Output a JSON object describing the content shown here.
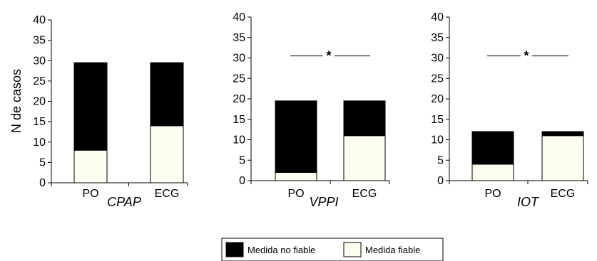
{
  "y_axis_label": "N de casos",
  "legend": {
    "items": [
      {
        "label": "Medida no fiable",
        "color": "#000000"
      },
      {
        "label": "Medida fiable",
        "color": "#fefef0"
      }
    ]
  },
  "chart_data": [
    {
      "type": "bar",
      "stacked": true,
      "title": "CPAP",
      "categories": [
        "PO",
        "ECG"
      ],
      "ylim": [
        0,
        40
      ],
      "yticks": [
        0,
        5,
        10,
        15,
        20,
        25,
        30,
        35,
        40
      ],
      "series": [
        {
          "name": "Medida fiable",
          "values": [
            8,
            14
          ]
        },
        {
          "name": "Medida no fiable",
          "values": [
            21.5,
            15.5
          ]
        }
      ],
      "significance": null
    },
    {
      "type": "bar",
      "stacked": true,
      "title": "VPPI",
      "categories": [
        "PO",
        "ECG"
      ],
      "ylim": [
        0,
        40
      ],
      "yticks": [
        0,
        5,
        10,
        15,
        20,
        25,
        30,
        35,
        40
      ],
      "series": [
        {
          "name": "Medida fiable",
          "values": [
            2,
            11
          ]
        },
        {
          "name": "Medida no fiable",
          "values": [
            17.5,
            8.5
          ]
        }
      ],
      "significance": {
        "label": "*",
        "y": 30.5
      }
    },
    {
      "type": "bar",
      "stacked": true,
      "title": "IOT",
      "categories": [
        "PO",
        "ECG"
      ],
      "ylim": [
        0,
        40
      ],
      "yticks": [
        0,
        5,
        10,
        15,
        20,
        25,
        30,
        35,
        40
      ],
      "series": [
        {
          "name": "Medida fiable",
          "values": [
            4,
            11
          ]
        },
        {
          "name": "Medida no fiable",
          "values": [
            8,
            1
          ]
        }
      ],
      "significance": {
        "label": "*",
        "y": 30.5
      }
    }
  ]
}
